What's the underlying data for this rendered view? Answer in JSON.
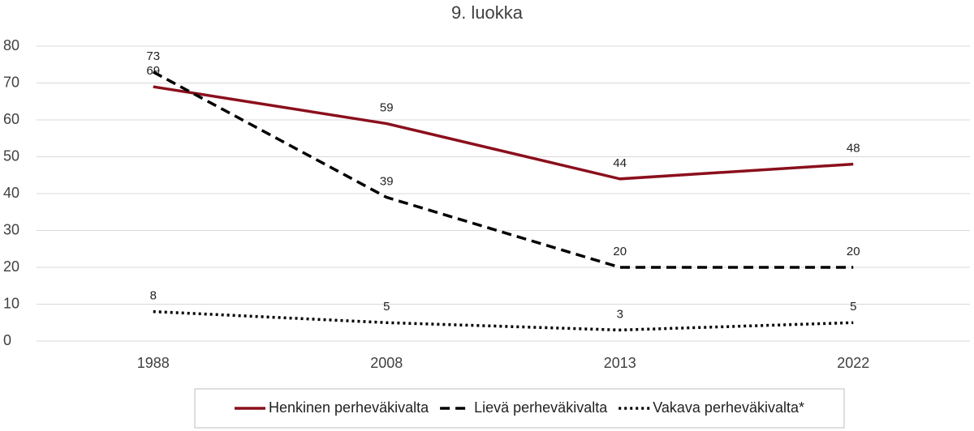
{
  "chart_data": {
    "type": "line",
    "title": "9. luokka",
    "categories": [
      "1988",
      "2008",
      "2013",
      "2022"
    ],
    "series": [
      {
        "name": "Henkinen perheväkivalta",
        "color": "#8b0f1c",
        "dash": "solid",
        "values": [
          69,
          59,
          44,
          48
        ]
      },
      {
        "name": "Lievä perheväkivalta",
        "color": "#000000",
        "dash": "dashed",
        "values": [
          73,
          39,
          20,
          20
        ]
      },
      {
        "name": "Vakava perheväkivalta*",
        "color": "#000000",
        "dash": "dotted",
        "values": [
          8,
          5,
          3,
          5
        ]
      }
    ],
    "ylim": [
      0,
      80
    ],
    "yticks": [
      0,
      10,
      20,
      30,
      40,
      50,
      60,
      70,
      80
    ],
    "grid": true,
    "legend": "bottom"
  }
}
